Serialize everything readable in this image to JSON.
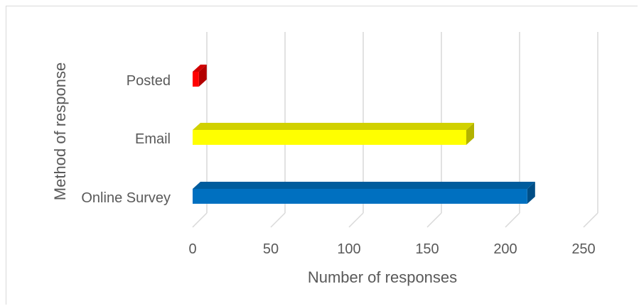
{
  "chart_data": {
    "type": "bar",
    "orientation": "horizontal",
    "style": "3d",
    "categories": [
      "Posted",
      "Email",
      "Online Survey"
    ],
    "values": [
      4,
      175,
      214
    ],
    "colors": [
      "#ff0000",
      "#ffff00",
      "#0070c0"
    ],
    "xlabel": "Number of responses",
    "ylabel": "Method of response",
    "xlim": [
      0,
      250
    ],
    "x_ticks": [
      "0",
      "50",
      "100",
      "150",
      "200",
      "250"
    ],
    "grid": true,
    "legend": "none"
  }
}
